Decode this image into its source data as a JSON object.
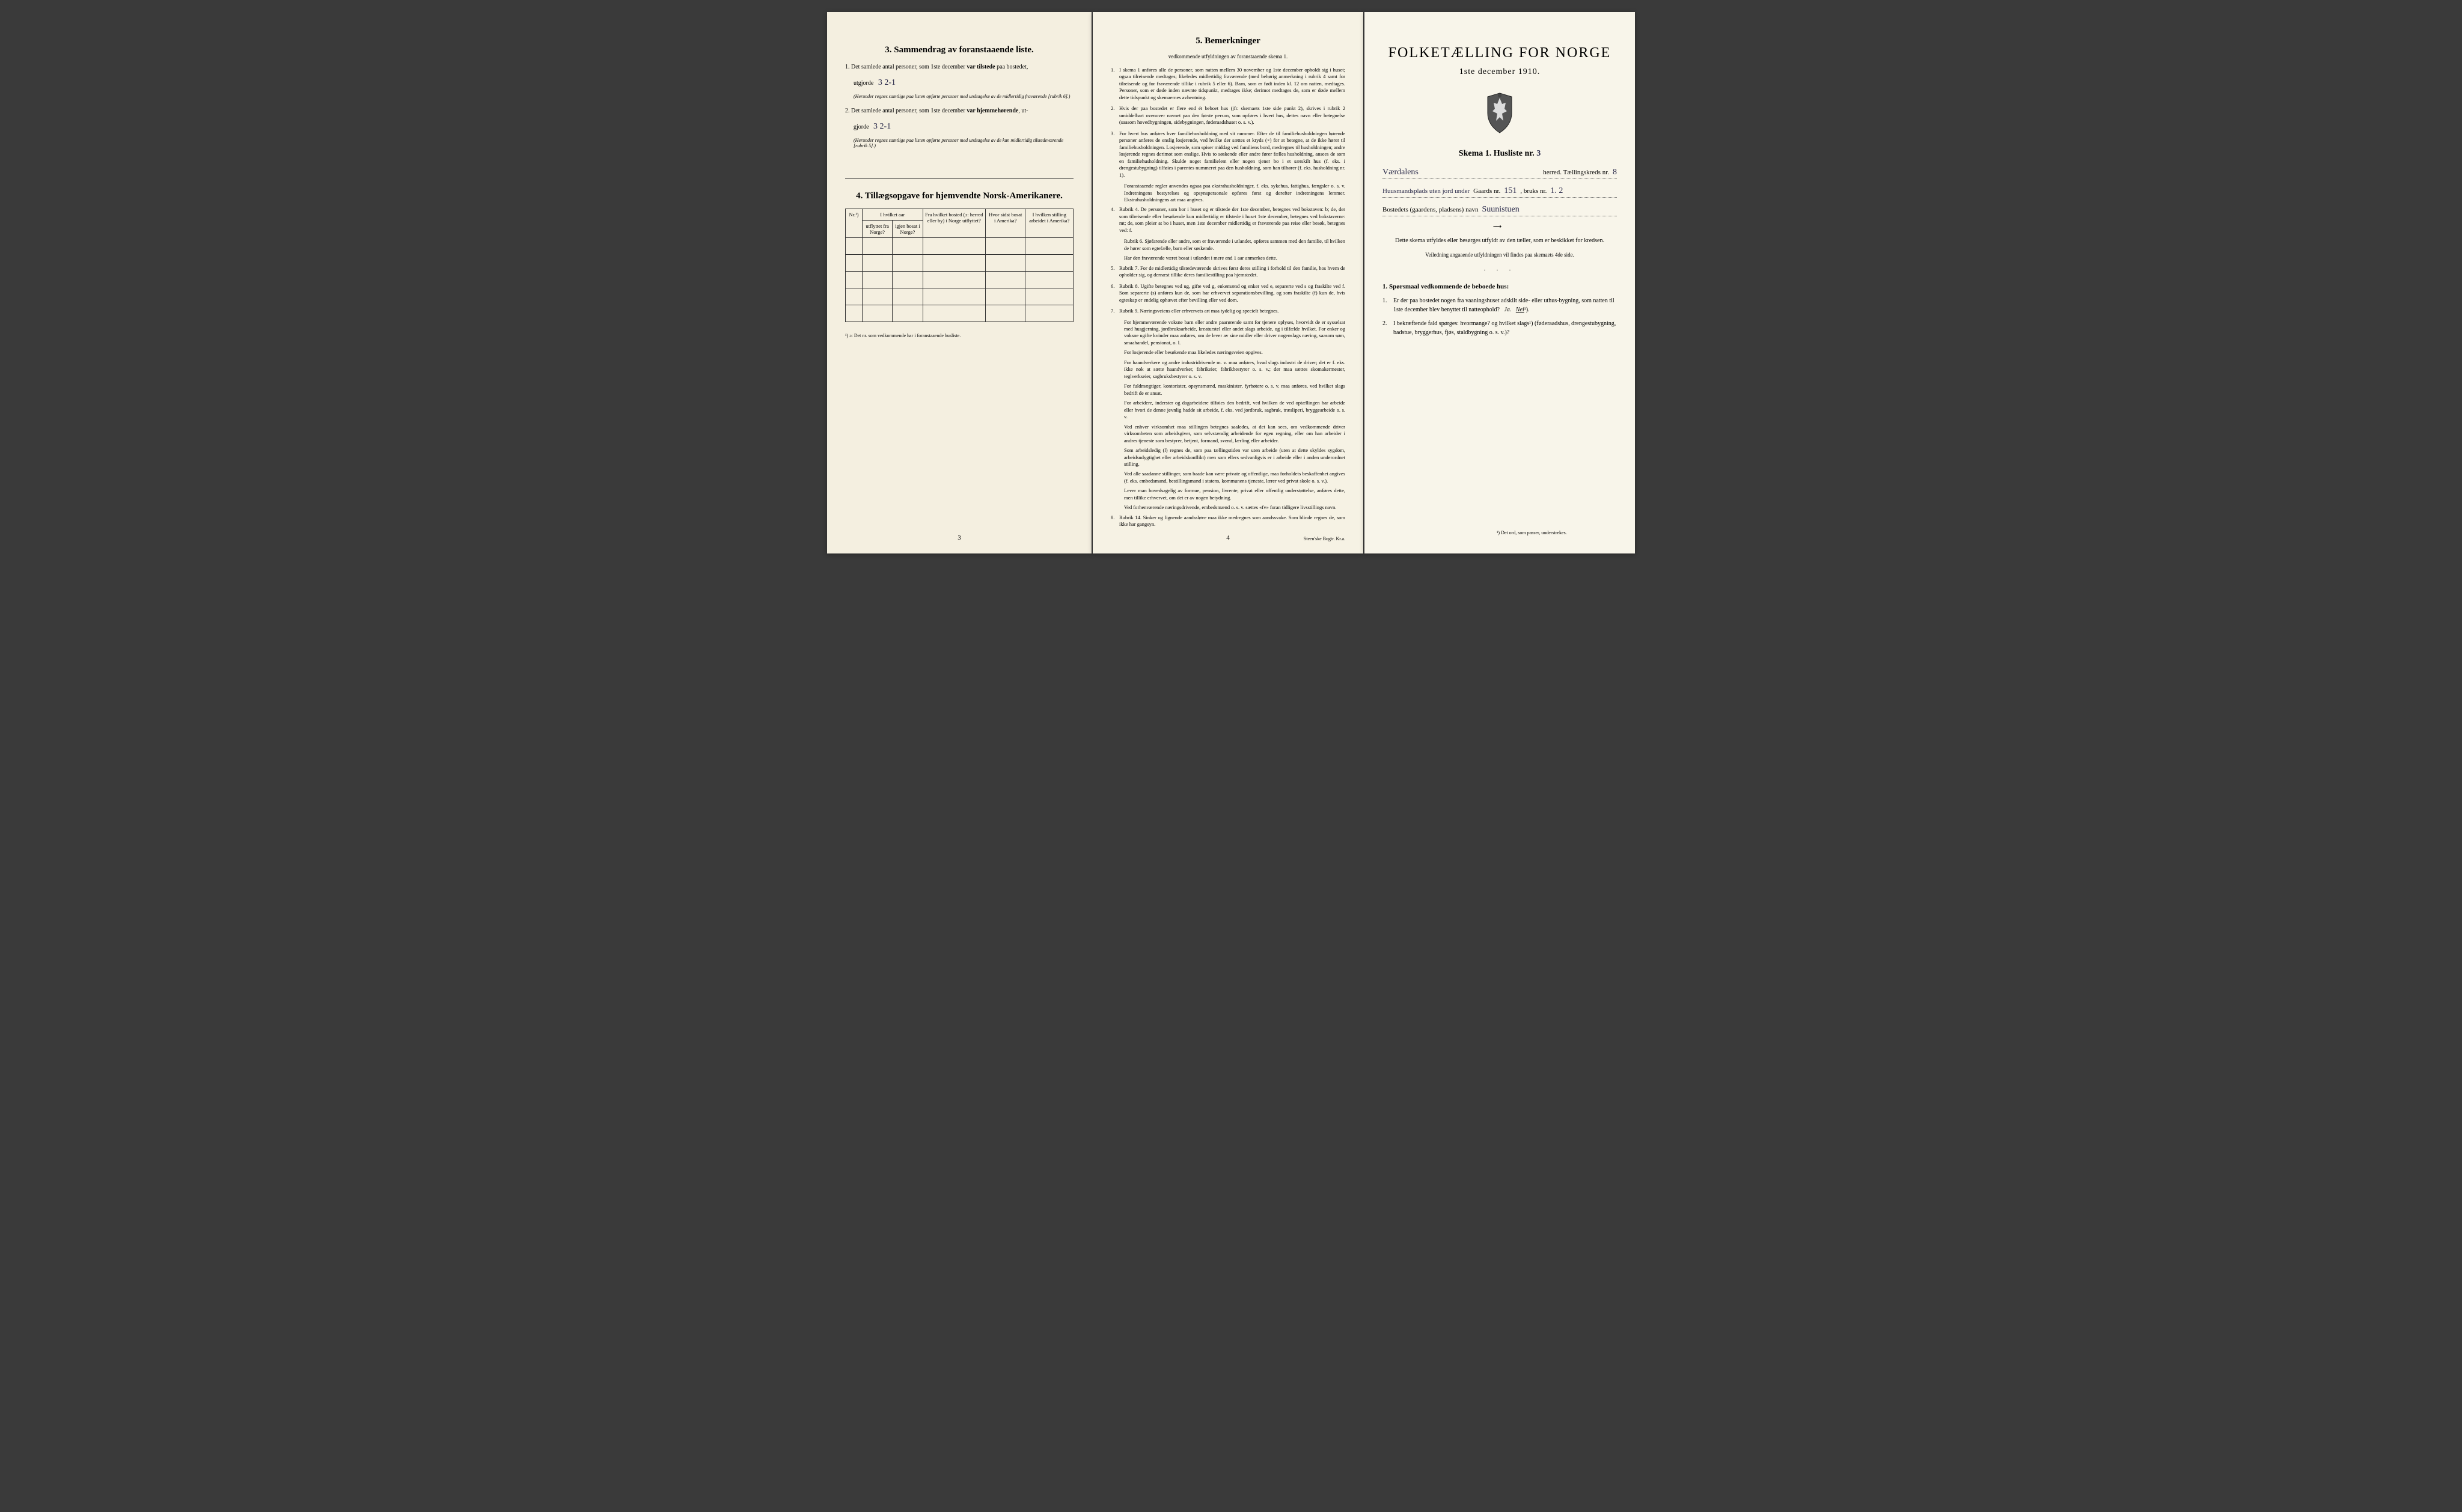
{
  "pageLeft": {
    "section3": {
      "heading": "3.   Sammendrag av foranstaaende liste.",
      "item1_prefix": "1. Det samlede antal personer, som 1ste december ",
      "item1_bold": "var tilstede",
      "item1_suffix": " paa bostedet,",
      "item1_line2": "utgjorde",
      "item1_handwritten": "3   2-1",
      "item1_note": "(Herunder regnes samtlige paa listen opførte personer med undtagelse av de midlertidig fraværende [rubrik 6].)",
      "item2_prefix": "2. Det samlede antal personer, som 1ste december ",
      "item2_bold": "var hjemmehørende",
      "item2_suffix": ", ut-",
      "item2_line2": "gjorde",
      "item2_handwritten": "3   2-1",
      "item2_note": "(Herunder regnes samtlige paa listen opførte personer med undtagelse av de kun midlertidig tilstedeværende [rubrik 5].)"
    },
    "section4": {
      "heading": "4.  Tillægsopgave for hjemvendte Norsk-Amerikanere.",
      "cols": [
        "Nr.¹)",
        "I hvilket aar utflyttet fra Norge?",
        "igjen bosat i Norge?",
        "Fra hvilket bosted (ɔ: herred eller by) i Norge utflyttet?",
        "Hvor sidst bosat i Amerika?",
        "I hvilken stilling arbeidet i Amerika?"
      ],
      "footnote": "¹) ɔ: Det nr. som vedkommende har i foranstaaende husliste."
    },
    "pageNum": "3"
  },
  "pageMiddle": {
    "heading": "5.   Bemerkninger",
    "subtitle": "vedkommende utfyldningen av foranstaaende skema 1.",
    "remarks": [
      {
        "n": "1.",
        "text": "I skema 1 anføres alle de personer, som natten mellem 30 november og 1ste december opholdt sig i huset; ogsaa tilreisende medtages; likeledes midlertidig fraværende (med behørig anmerkning i rubrik 4 samt for tilreisende og for fraværende tillike i rubrik 5 eller 6). Barn, som er født inden kl. 12 om natten, medtages. Personer, som er døde inden nævnte tidspunkt, medtages ikke; derimot medtages de, som er døde mellem dette tidspunkt og skemaernes avhentning."
      },
      {
        "n": "2.",
        "text": "Hvis der paa bostedet er flere end ét beboet hus (jfr. skemaets 1ste side punkt 2), skrives i rubrik 2 umiddelbart ovenover navnet paa den første person, som opføres i hvert hus, dettes navn eller betegnelse (saasom hovedbygningen, sidebygningen, føderaadshuset o. s. v.)."
      },
      {
        "n": "3.",
        "text": "For hvert hus anføres hver familiehusholdning med sit nummer. Efter de til familiehusholdningen hørende personer anføres de enslig losjerende, ved hvilke der sættes et kryds (×) for at betegne, at de ikke hører til familiehusholdningen. Losjerende, som spiser middag ved familiens bord, medregnes til husholdningen; andre losjerende regnes derimot som enslige. Hvis to søskende eller andre fører fælles husholdning, ansees de som en familiehusholdning. Skulde noget familielem eller nogen tjener bo i et særskilt hus (f. eks. i drengestubygning) tilføies i parentes nummeret paa den husholdning, som han tilhører (f. eks. husholdning nr. 1)."
      },
      {
        "n": "",
        "text": "Foranstaaende regler anvendes ogsaa paa ekstrahusholdninger, f. eks. sykehus, fattighus, fængsler o. s. v. Indretningens bestyrelses og opsynspersonale opføres først og derefter indretningens lemmer. Ekstrahusholdningens art maa angives."
      },
      {
        "n": "4.",
        "text": "Rubrik 4. De personer, som bor i huset og er tilstede der 1ste december, betegnes ved bokstaven: b; de, der som tilreisende eller besøkende kun midlertidig er tilstede i huset 1ste december, betegnes ved bokstaverne: mt; de, som pleier at bo i huset, men 1ste december midlertidig er fraværende paa reise eller besøk, betegnes ved: f."
      },
      {
        "n": "",
        "text": "Rubrik 6. Sjøfarende eller andre, som er fraværende i utlandet, opføres sammen med den familie, til hvilken de hører som egtefælle, barn eller søskende."
      },
      {
        "n": "",
        "text": "Har den fraværende været bosat i utlandet i mere end 1 aar anmerkes dette."
      },
      {
        "n": "5.",
        "text": "Rubrik 7. For de midlertidig tilstedeværende skrives først deres stilling i forhold til den familie, hos hvem de opholder sig, og dernæst tillike deres familiestilling paa hjemstedet."
      },
      {
        "n": "6.",
        "text": "Rubrik 8. Ugifte betegnes ved ug, gifte ved g, enkemænd og enker ved e, separerte ved s og fraskilte ved f. Som separerte (s) anføres kun de, som har erhvervet separationsbevilling, og som fraskilte (f) kun de, hvis egteskap er endelig ophævet efter bevilling eller ved dom."
      },
      {
        "n": "7.",
        "text": "Rubrik 9. Næringsveiens eller erhvervets art maa tydelig og specielt betegnes."
      },
      {
        "n": "",
        "text": "For hjemmeværende voksne barn eller andre paarørende samt for tjenere oplyses, hvorvidt de er sysselsat med husgjerning, jordbruksarbeide, kreaturstel eller andet slags arbeide, og i tilfælde hvilket. For enker og voksne ugifte kvinder maa anføres, om de lever av sine midler eller driver nogenslags næring, saasom søm, smaahandel, pensionat, o. l."
      },
      {
        "n": "",
        "text": "For losjerende eller besøkende maa likeledes næringsveien opgives."
      },
      {
        "n": "",
        "text": "For haandverkere og andre industridrivende m. v. maa anføres, hvad slags industri de driver; det er f. eks. ikke nok at sætte haandverker, fabrikeier, fabrikbestyrer o. s. v.; der maa sættes skomakermester, teglverkseier, sagbruksbestyrer o. s. v."
      },
      {
        "n": "",
        "text": "For fuldmægtiger, kontorister, opsynsmænd, maskinister, fyrbøtere o. s. v. maa anføres, ved hvilket slags bedrift de er ansat."
      },
      {
        "n": "",
        "text": "For arbeidere, inderster og dagarbeidere tilføies den bedrift, ved hvilken de ved optællingen har arbeide eller hvori de denne jevnlig hadde sit arbeide, f. eks. ved jordbruk, sagbruk, træsliperi, bryggearbeide o. s. v."
      },
      {
        "n": "",
        "text": "Ved enhver virksomhet maa stillingen betegnes saaledes, at det kan sees, om vedkommende driver virksomheten som arbeidsgiver, som selvstændig arbeidende for egen regning, eller om han arbeider i andres tjeneste som bestyrer, betjent, formand, svend, lærling eller arbeider."
      },
      {
        "n": "",
        "text": "Som arbeidsledig (l) regnes de, som paa tællingstiden var uten arbeide (uten at dette skyldes sygdom, arbeidsudygtighet eller arbeidskonflikt) men som ellers sedvanligvis er i arbeide eller i anden underordnet stilling."
      },
      {
        "n": "",
        "text": "Ved alle saadanne stillinger, som baade kan være private og offentlige, maa forholdets beskaffenhet angives (f. eks. embedsmand, bestillingsmand i statens, kommunens tjeneste, lærer ved privat skole o. s. v.)."
      },
      {
        "n": "",
        "text": "Lever man hovedsagelig av formue, pension, livrente, privat eller offentlig understøttelse, anføres dette, men tillike erhvervet, om det er av nogen betydning."
      },
      {
        "n": "",
        "text": "Ved forhenværende næringsdrivende, embedsmænd o. s. v. sættes «fv» foran tidligere livsstillings navn."
      },
      {
        "n": "8.",
        "text": "Rubrik 14. Sinker og lignende aandssløve maa ikke medregnes som aandssvake. Som blinde regnes de, som ikke har gangsyn."
      }
    ],
    "pageNum": "4",
    "printer": "Steen'ske Bogtr. Kr.a."
  },
  "pageRight": {
    "title": "FOLKETÆLLING FOR NORGE",
    "subtitle": "1ste december 1910.",
    "skemaLabel": "Skema 1.   Husliste nr.",
    "skemaNum": "3",
    "line1_suffix": "herred.   Tællingskreds nr.",
    "line1_hw1": "Værdalens",
    "line1_hw2": "8",
    "line2_prefix": "",
    "line2_hw1": "Huusmandsplads uten jord under",
    "line2_mid": "Gaards nr.",
    "line2_hw2": "151",
    "line2_mid2": ", bruks nr.",
    "line2_hw3": "1. 2",
    "line3_prefix": "Bostedets (gaardens, pladsens) navn",
    "line3_hw": "Suunistuen",
    "instruction1": "Dette skema utfyldes eller besørges utfyldt av den tæller, som er beskikket for kredsen.",
    "instruction2": "Veiledning angaaende utfyldningen vil findes paa skemaets 4de side.",
    "q_heading": "1. Spørsmaal vedkommende de beboede hus:",
    "q1": "Er der paa bostedet nogen fra vaaningshuset adskilt side- eller uthus-bygning, som natten til 1ste december blev benyttet til natteophold?",
    "q1_answer_ja": "Ja.",
    "q1_answer_nei": "Nei",
    "q2": "I bekræftende fald spørges: hvormange?          og hvilket slags¹) (føderaadshus, drengestubygning, badstue, bryggerhus, fjøs, staldbygning o. s. v.)?",
    "footnote": "¹) Det ord, som passer, understrekes."
  }
}
